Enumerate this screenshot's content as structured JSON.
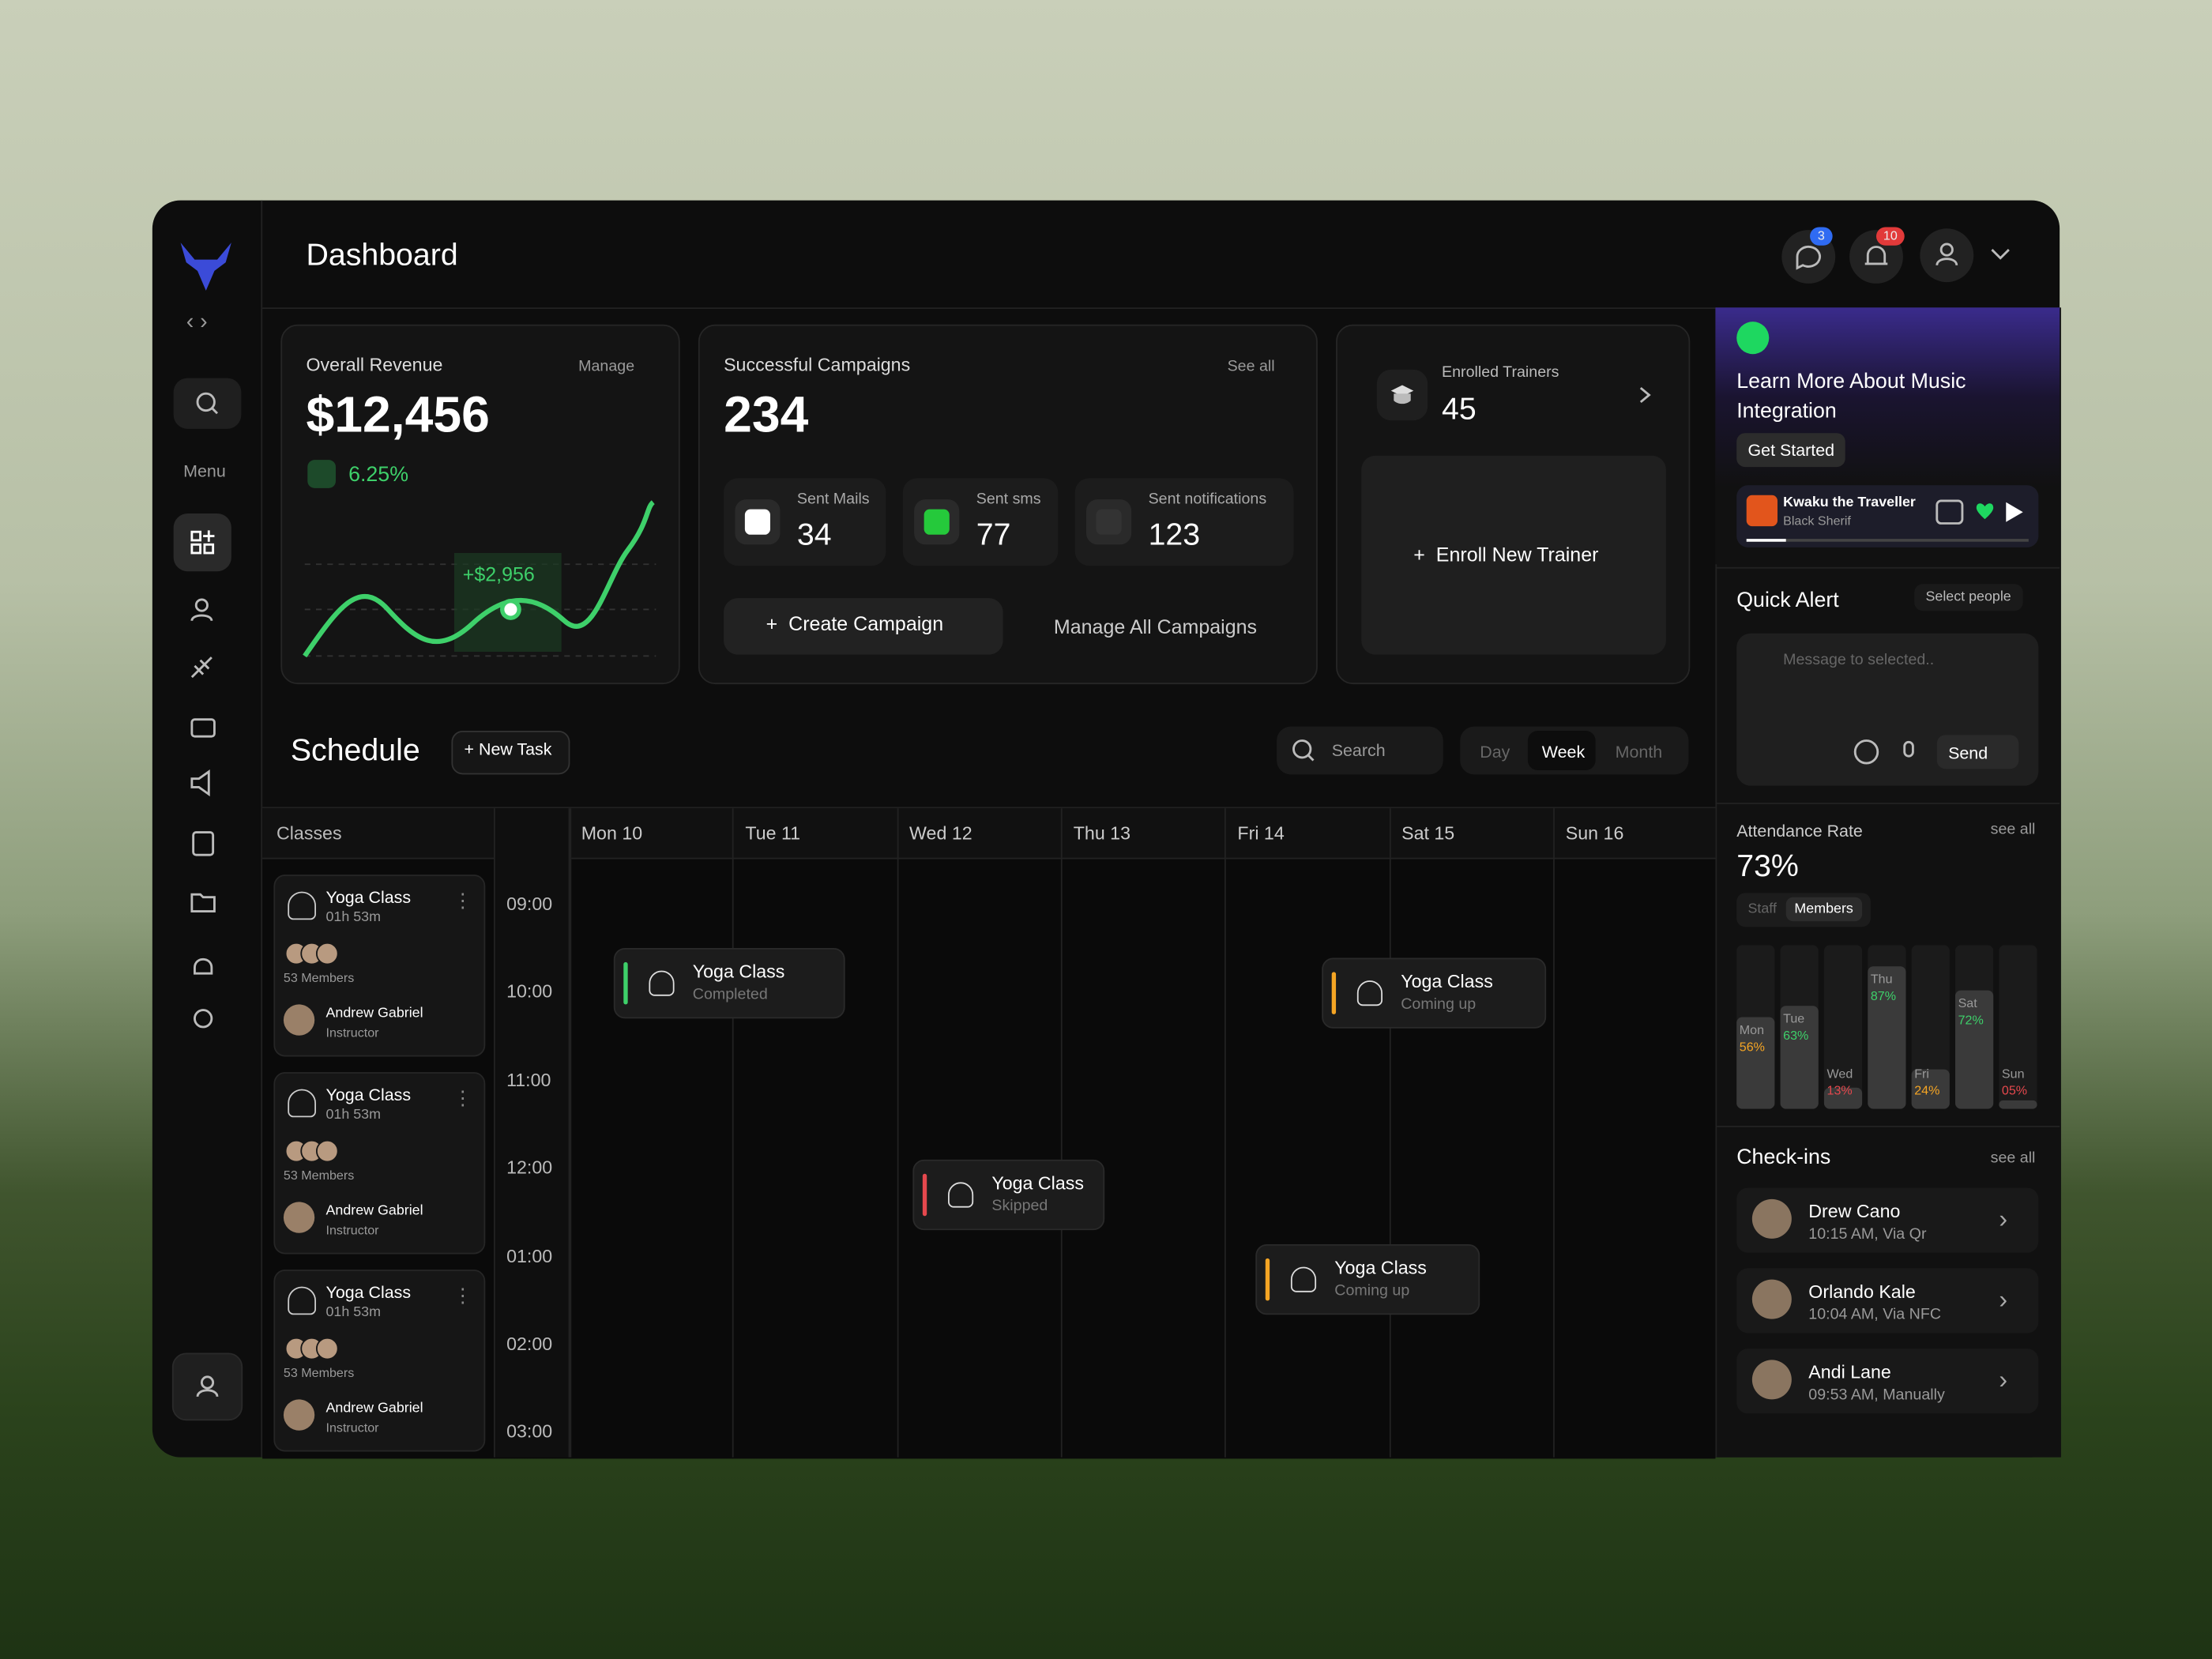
{
  "header": {
    "title": "Dashboard",
    "messages_badge": "3",
    "notifications_badge": "10"
  },
  "sidebar": {
    "menu_label": "Menu"
  },
  "revenue": {
    "title": "Overall Revenue",
    "link": "Manage",
    "value": "$12,456",
    "change": "6.25%",
    "tooltip": "+$2,956"
  },
  "campaigns": {
    "title": "Successful Campaigns",
    "link": "See all",
    "value": "234",
    "stats": [
      {
        "label": "Sent Mails",
        "value": "34"
      },
      {
        "label": "Sent sms",
        "value": "77"
      },
      {
        "label": "Sent notifications",
        "value": "123"
      }
    ],
    "create": "Create Campaign",
    "manage": "Manage All Campaigns"
  },
  "trainers": {
    "label": "Enrolled Trainers",
    "value": "45",
    "enroll": "Enroll New Trainer"
  },
  "music": {
    "title": "Learn More About Music Integration",
    "button": "Get Started",
    "track": "Kwaku the Traveller",
    "artist": "Black Sherif"
  },
  "quick_alert": {
    "title": "Quick Alert",
    "select": "Select people",
    "placeholder": "Message to selected..",
    "send": "Send"
  },
  "attendance": {
    "title": "Attendance Rate",
    "link": "see all",
    "value": "73%",
    "tabs": [
      "Staff",
      "Members"
    ],
    "chart": {
      "type": "bar",
      "categories": [
        "Mon",
        "Tue",
        "Wed",
        "Thu",
        "Fri",
        "Sat",
        "Sun"
      ],
      "values": [
        56,
        63,
        13,
        87,
        24,
        72,
        5
      ],
      "value_labels": [
        "56%",
        "63%",
        "13%",
        "87%",
        "24%",
        "72%",
        "05%"
      ],
      "ylim": [
        0,
        100
      ]
    }
  },
  "checkins": {
    "title": "Check-ins",
    "link": "see all",
    "items": [
      {
        "name": "Drew Cano",
        "detail": "10:15 AM, Via Qr"
      },
      {
        "name": "Orlando Kale",
        "detail": "10:04 AM, Via NFC"
      },
      {
        "name": "Andi Lane",
        "detail": "09:53 AM, Manually"
      }
    ]
  },
  "schedule": {
    "title": "Schedule",
    "new_task": "New Task",
    "search": "Search",
    "views": [
      "Day",
      "Week",
      "Month"
    ],
    "classes_header": "Classes",
    "classes": [
      {
        "name": "Yoga Class",
        "duration": "01h 53m",
        "members": "53 Members",
        "instructor": "Andrew Gabriel",
        "role": "Instructor"
      },
      {
        "name": "Yoga Class",
        "duration": "01h 53m",
        "members": "53 Members",
        "instructor": "Andrew Gabriel",
        "role": "Instructor"
      },
      {
        "name": "Yoga Class",
        "duration": "01h 53m",
        "members": "53 Members",
        "instructor": "Andrew Gabriel",
        "role": "Instructor"
      }
    ],
    "days": [
      "Mon 10",
      "Tue 11",
      "Wed 12",
      "Thu 13",
      "Fri 14",
      "Sat 15",
      "Sun 16"
    ],
    "times": [
      "09:00",
      "10:00",
      "11:00",
      "12:00",
      "01:00",
      "02:00",
      "03:00"
    ],
    "events": [
      {
        "title": "Yoga Class",
        "status": "Completed"
      },
      {
        "title": "Yoga Class",
        "status": "Coming up"
      },
      {
        "title": "Yoga Class",
        "status": "Skipped"
      },
      {
        "title": "Yoga Class",
        "status": "Coming up"
      }
    ]
  }
}
